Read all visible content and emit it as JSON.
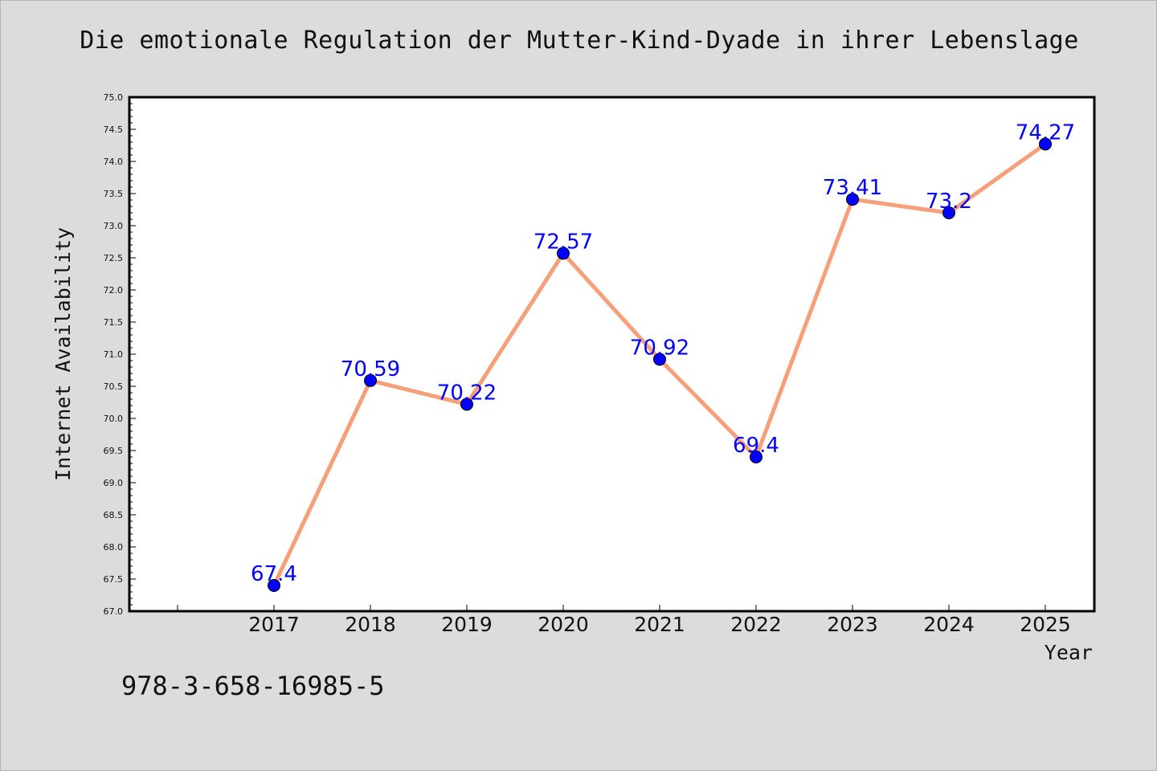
{
  "chart_data": {
    "type": "line",
    "title": "Die emotionale Regulation der Mutter-Kind-Dyade in ihrer Lebenslage",
    "xlabel": "Year",
    "ylabel": "Internet Availability",
    "categories": [
      "2017",
      "2018",
      "2019",
      "2020",
      "2021",
      "2022",
      "2023",
      "2024",
      "2025"
    ],
    "values": [
      67.4,
      70.59,
      70.22,
      72.57,
      70.92,
      69.4,
      73.41,
      73.2,
      74.27
    ],
    "data_labels": [
      "67.4",
      "70.59",
      "70.22",
      "72.57",
      "70.92",
      "69.4",
      "73.41",
      "73.2",
      "74.27"
    ],
    "ylim": [
      67.0,
      75.0
    ],
    "yticks": [
      "67.0",
      "67.5",
      "68.0",
      "68.5",
      "69.0",
      "69.5",
      "70.0",
      "70.5",
      "71.0",
      "71.5",
      "72.0",
      "72.5",
      "73.0",
      "73.5",
      "74.0",
      "74.5",
      "75.0"
    ],
    "grid": false,
    "colors": {
      "line": "#f5a07a",
      "marker": "#0000ff",
      "marker_edge": "#000000",
      "data_label": "#0000ff",
      "plot_background": "#ffffff",
      "figure_background": "#dcdcdc"
    }
  },
  "footer": {
    "isbn": "978-3-658-16985-5"
  }
}
